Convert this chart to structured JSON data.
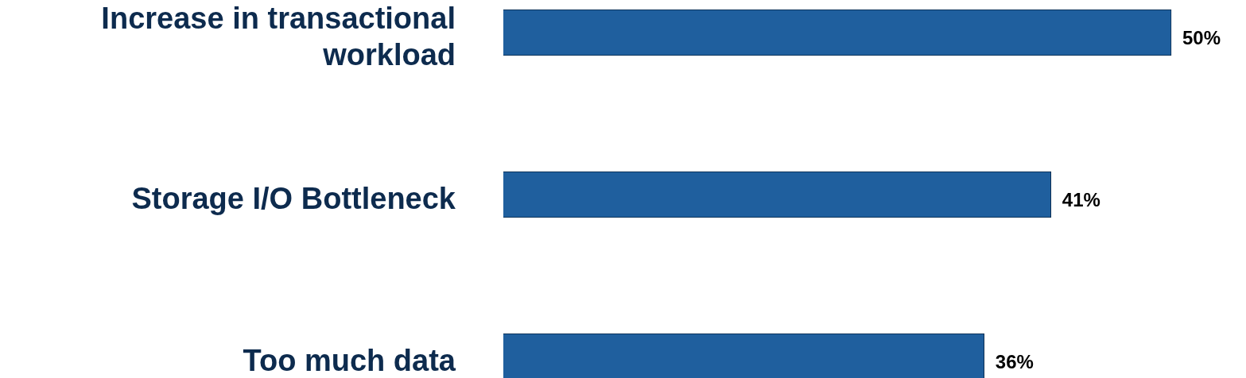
{
  "chart_data": {
    "type": "bar",
    "orientation": "horizontal",
    "categories": [
      "Increase in transactional workload",
      "Storage I/O Bottleneck",
      "Too much data"
    ],
    "values": [
      50,
      41,
      36
    ],
    "value_labels": [
      "50%",
      "41%",
      "36%"
    ],
    "color": "#1f5f9e",
    "legend": false
  }
}
